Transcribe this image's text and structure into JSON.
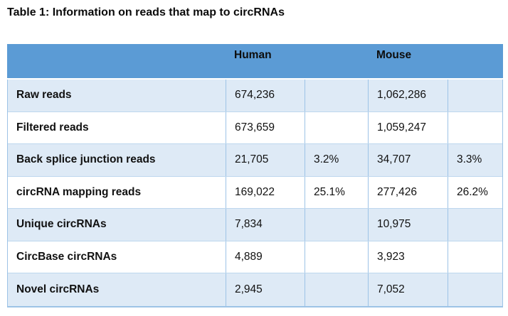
{
  "title": "Table 1: Information on reads that map to circRNAs",
  "colors": {
    "header_bg": "#5B9BD5",
    "row_alt_bg": "#DEEAF6",
    "row_bg": "#FFFFFF",
    "grid": "#9DC3E6"
  },
  "table": {
    "header": {
      "human": "Human",
      "mouse": "Mouse"
    },
    "rows": [
      {
        "label": "Raw reads",
        "human_count": "674,236",
        "human_pct": "",
        "mouse_count": "1,062,286",
        "mouse_pct": ""
      },
      {
        "label": "Filtered reads",
        "human_count": "673,659",
        "human_pct": "",
        "mouse_count": "1,059,247",
        "mouse_pct": ""
      },
      {
        "label": "Back splice junction reads",
        "human_count": "21,705",
        "human_pct": "3.2%",
        "mouse_count": "34,707",
        "mouse_pct": "3.3%"
      },
      {
        "label": "circRNA mapping reads",
        "human_count": "169,022",
        "human_pct": "25.1%",
        "mouse_count": "277,426",
        "mouse_pct": "26.2%"
      },
      {
        "label": "Unique circRNAs",
        "human_count": "7,834",
        "human_pct": "",
        "mouse_count": "10,975",
        "mouse_pct": ""
      },
      {
        "label": "CircBase circRNAs",
        "human_count": "4,889",
        "human_pct": "",
        "mouse_count": "3,923",
        "mouse_pct": ""
      },
      {
        "label": "Novel circRNAs",
        "human_count": "2,945",
        "human_pct": "",
        "mouse_count": "7,052",
        "mouse_pct": ""
      }
    ]
  }
}
